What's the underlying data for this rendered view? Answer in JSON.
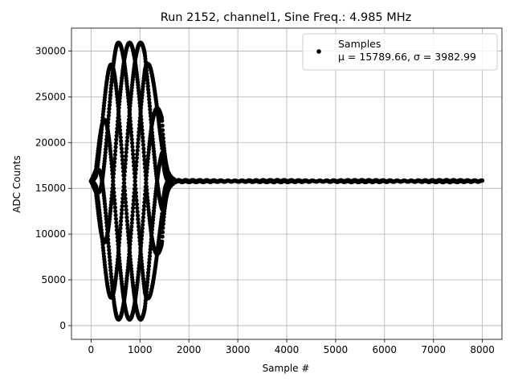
{
  "chart_data": {
    "type": "scatter",
    "title": "Run 2152, channel1, Sine Freq.: 4.985 MHz",
    "xlabel": "Sample #",
    "ylabel": "ADC Counts",
    "xlim": [
      -400,
      8400
    ],
    "ylim": [
      -1500,
      32500
    ],
    "xticks": [
      0,
      1000,
      2000,
      3000,
      4000,
      5000,
      6000,
      7000,
      8000
    ],
    "yticks": [
      0,
      5000,
      10000,
      15000,
      20000,
      25000,
      30000
    ],
    "xtick_labels": [
      "0",
      "1000",
      "2000",
      "3000",
      "4000",
      "5000",
      "6000",
      "7000",
      "8000"
    ],
    "ytick_labels": [
      "0",
      "5000",
      "10000",
      "15000",
      "20000",
      "25000",
      "30000"
    ],
    "grid": true,
    "legend": {
      "position": "top-right",
      "entries": [
        {
          "name": "Samples",
          "stats": "μ = 15789.66, σ = 3982.99",
          "marker": "dot"
        }
      ]
    },
    "series": [
      {
        "name": "Samples",
        "color": "#000000",
        "baseline": 15789.66,
        "burst": {
          "x_start": 0,
          "x_end": 1700,
          "peak_max": 30900,
          "trough_min": 600,
          "envelope_peak_x": 800,
          "aliased_phases": 6,
          "beat_period_samples": 1350
        },
        "tail": {
          "x_start": 1700,
          "x_end": 8000,
          "value": 15789.66,
          "jitter": 120
        }
      }
    ]
  }
}
